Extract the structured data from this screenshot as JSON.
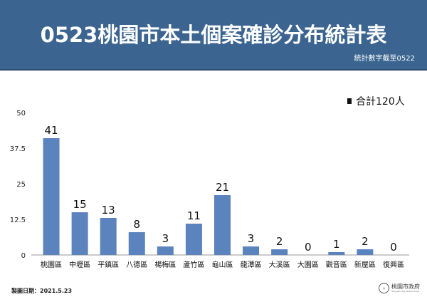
{
  "header": {
    "title": "0523桃園市本土個案確診分布統計表",
    "subtitle": "統計數字截至0522",
    "background": "#3b6590"
  },
  "legend": {
    "label": "合計120人"
  },
  "footer": {
    "date": "製圖日期：2021.5.23",
    "logo_name": "桃園市政府",
    "logo_en": "Taoyuan City Government"
  },
  "chart_data": {
    "type": "bar",
    "categories": [
      "桃園區",
      "中壢區",
      "平鎮區",
      "八德區",
      "楊梅區",
      "蘆竹區",
      "龜山區",
      "龍潭區",
      "大溪區",
      "大園區",
      "觀音區",
      "新屋區",
      "復興區"
    ],
    "values": [
      41,
      15,
      13,
      8,
      3,
      11,
      21,
      3,
      2,
      0,
      1,
      2,
      0
    ],
    "yticks": [
      "0",
      "12.5",
      "25",
      "37.5",
      "50"
    ],
    "ylim": [
      0,
      50
    ],
    "grid": false,
    "bar_color": "#5b83bd",
    "legend_position": "top-right"
  }
}
